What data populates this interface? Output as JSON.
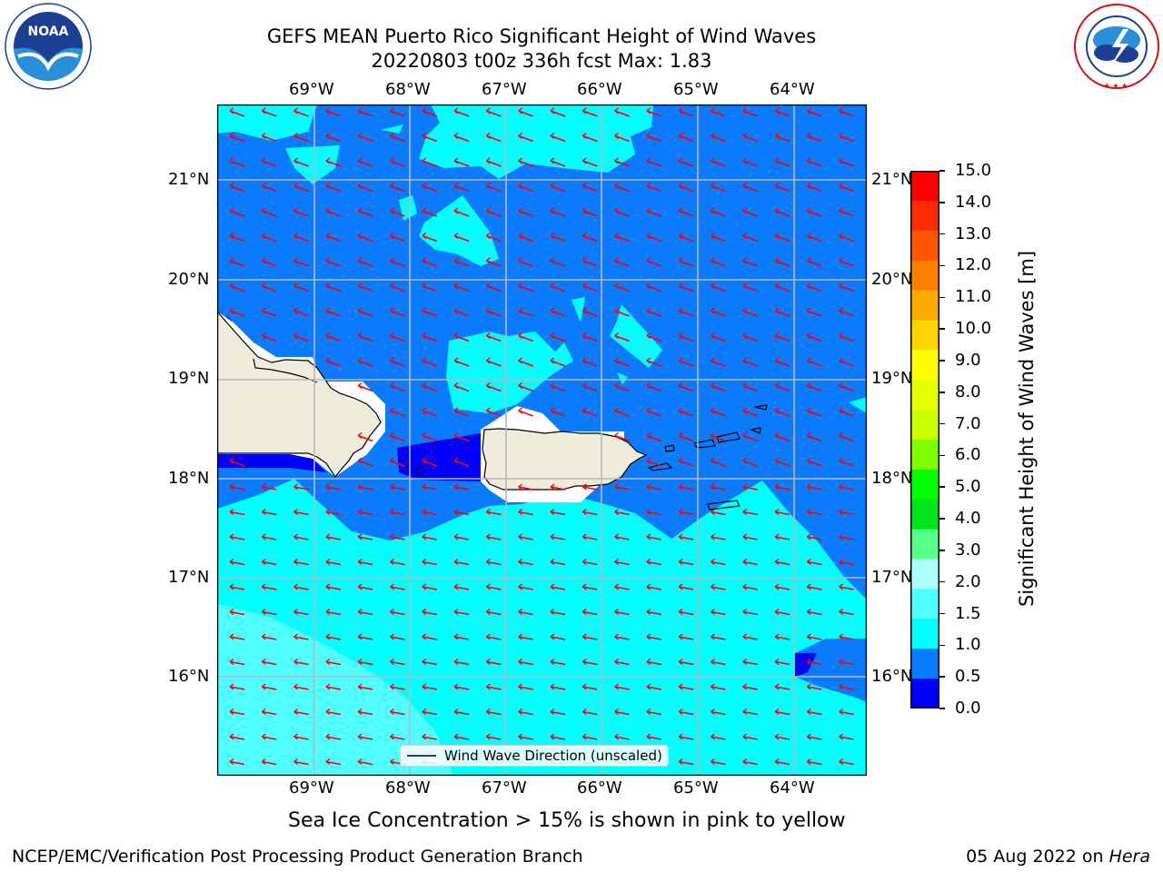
{
  "header": {
    "title_line1": "GEFS MEAN Puerto Rico Significant Height of Wind Waves",
    "title_line2": "20220803 t00z 336h fcst   Max: 1.83"
  },
  "logos": {
    "left_name": "NOAA",
    "left_ring_text": "NATIONAL OCEANIC AND ATMOSPHERIC ADMINISTRATION · U.S. DEPARTMENT OF COMMERCE",
    "right_ring_text": "NATIONAL WEATHER SERVICE"
  },
  "map": {
    "lon_labels": [
      "69°W",
      "68°W",
      "67°W",
      "66°W",
      "65°W",
      "64°W"
    ],
    "lat_labels": [
      "21°N",
      "20°N",
      "19°N",
      "18°N",
      "17°N",
      "16°N"
    ],
    "legend_label": "Wind Wave Direction (unscaled)",
    "colors": {
      "band_0_05": "#0000ff",
      "band_05_1": "#0a7bff",
      "band_1_15": "#00ffff",
      "band_15_2": "#50ffff",
      "land": "#efecdc",
      "arrow": "#ff0000",
      "grid": "#b8b8b8"
    }
  },
  "colorbar": {
    "label": "Significant Height of Wind Waves [m]",
    "ticks": [
      "15.0",
      "14.0",
      "13.0",
      "12.0",
      "11.0",
      "10.0",
      "9.0",
      "8.0",
      "7.0",
      "6.0",
      "5.0",
      "4.0",
      "3.0",
      "2.0",
      "1.5",
      "1.0",
      "0.5",
      "0.0"
    ],
    "colors_top_to_bottom": [
      "#ff0000",
      "#ff2a00",
      "#ff5500",
      "#ff8000",
      "#ffaa00",
      "#ffd400",
      "#ffff00",
      "#e6ff00",
      "#ccff00",
      "#80ff00",
      "#00ff00",
      "#00e51a",
      "#55ff88",
      "#b0ffff",
      "#50ffff",
      "#00ffff",
      "#0a7bff",
      "#0000ff"
    ]
  },
  "footer": {
    "caption": "Sea Ice Concentration > 15% is shown in pink to yellow",
    "left": "NCEP/EMC/Verification Post Processing Product Generation Branch",
    "right_date": "05 Aug 2022 on ",
    "right_host": "Hera"
  }
}
